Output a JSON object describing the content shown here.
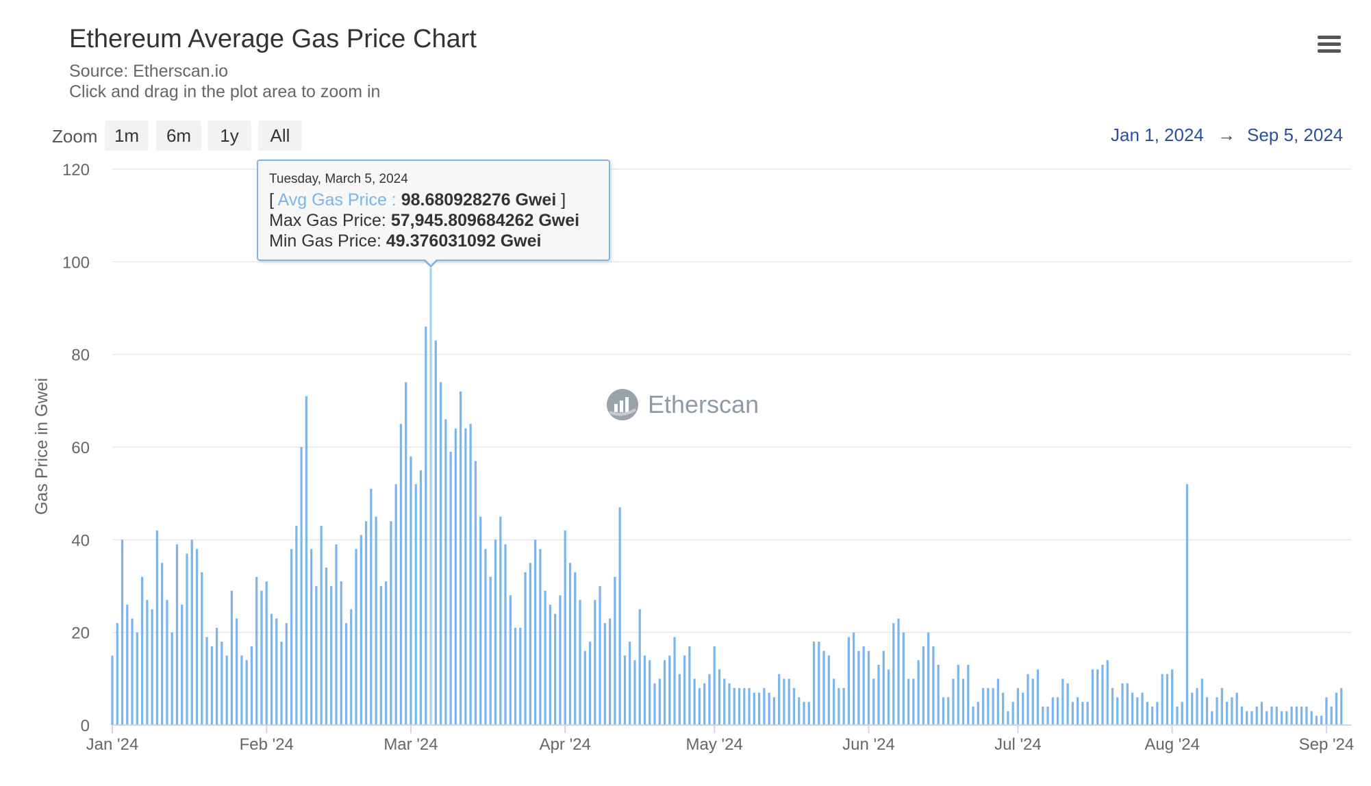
{
  "header": {
    "title": "Ethereum Average Gas Price Chart",
    "source": "Source: Etherscan.io",
    "instruction": "Click and drag in the plot area to zoom in"
  },
  "toolbar": {
    "zoom_label": "Zoom",
    "zoom_options": [
      "1m",
      "6m",
      "1y",
      "All"
    ],
    "range_from": "Jan 1, 2024",
    "range_arrow": "→",
    "range_to": "Sep 5, 2024",
    "menu_icon": "hamburger-menu-icon"
  },
  "watermark": {
    "text": "Etherscan",
    "icon": "etherscan-logo-icon"
  },
  "tooltip": {
    "date": "Tuesday, March 5, 2024",
    "avg_open": "[ ",
    "avg_label": "Avg Gas Price : ",
    "avg_value": "98.680928276 Gwei",
    "avg_close": " ]",
    "max_label": "Max Gas Price: ",
    "max_value": "57,945.809684262 Gwei",
    "min_label": "Min Gas Price: ",
    "min_value": "49.376031092 Gwei"
  },
  "colors": {
    "bar": "#7cb5ec",
    "range_text": "#2b4fa0",
    "grid": "#e6e6e6"
  },
  "chart_data": {
    "type": "bar",
    "title": "Ethereum Average Gas Price Chart",
    "subtitle": "Source: Etherscan.io",
    "ylabel": "Gas Price in Gwei",
    "xlabel": "",
    "ylim": [
      0,
      120
    ],
    "y_ticks": [
      0,
      20,
      40,
      60,
      80,
      100,
      120
    ],
    "x_start": "2024-01-01",
    "x_end": "2024-09-05",
    "x_ticks": [
      {
        "date": "2024-01-01",
        "label": "Jan '24"
      },
      {
        "date": "2024-02-01",
        "label": "Feb '24"
      },
      {
        "date": "2024-03-01",
        "label": "Mar '24"
      },
      {
        "date": "2024-04-01",
        "label": "Apr '24"
      },
      {
        "date": "2024-05-01",
        "label": "May '24"
      },
      {
        "date": "2024-06-01",
        "label": "Jun '24"
      },
      {
        "date": "2024-07-01",
        "label": "Jul '24"
      },
      {
        "date": "2024-08-01",
        "label": "Aug '24"
      },
      {
        "date": "2024-09-01",
        "label": "Sep '24"
      }
    ],
    "grid": true,
    "legend": "none",
    "highlighted_date": "2024-03-05",
    "series": [
      {
        "values": [
          15,
          22,
          40,
          26,
          23,
          20,
          32,
          27,
          25,
          42,
          35,
          27,
          20,
          39,
          26,
          37,
          40,
          38,
          33,
          19,
          17,
          21,
          18,
          15,
          29,
          23,
          15,
          14,
          17,
          32,
          29,
          31,
          24,
          23,
          18,
          22,
          38,
          43,
          60,
          71,
          38,
          30,
          43,
          34,
          30,
          39,
          31,
          22,
          25,
          38,
          41,
          44,
          51,
          45,
          30,
          31,
          44,
          52,
          65,
          74,
          58,
          52,
          55,
          86,
          98.68,
          83,
          74,
          66,
          59,
          64,
          72,
          64,
          65,
          57,
          45,
          38,
          32,
          40,
          45,
          39,
          28,
          21,
          21,
          33,
          35,
          40,
          38,
          29,
          26,
          24,
          28,
          42,
          35,
          33,
          27,
          16,
          18,
          27,
          30,
          22,
          23,
          32,
          47,
          15,
          18,
          14,
          25,
          15,
          14,
          9,
          10,
          14,
          15,
          19,
          11,
          15,
          17,
          10,
          8,
          9,
          11,
          17,
          12,
          10,
          9,
          8,
          8,
          8,
          8,
          7,
          7,
          8,
          7,
          6,
          11,
          10,
          10,
          8,
          6,
          5,
          5,
          18,
          18,
          16,
          15,
          10,
          8,
          8,
          19,
          20,
          16,
          17,
          16,
          10,
          13,
          16,
          12,
          22,
          23,
          20,
          10,
          10,
          14,
          17,
          20,
          17,
          13,
          6,
          6,
          10,
          13,
          10,
          13,
          4,
          5,
          8,
          8,
          8,
          10,
          7,
          3,
          5,
          8,
          7,
          11,
          10,
          12,
          4,
          4,
          6,
          6,
          10,
          9,
          5,
          6,
          5,
          5,
          12,
          12,
          13,
          14,
          8,
          6,
          9,
          9,
          7,
          6,
          7,
          5,
          4,
          5,
          11,
          11,
          12,
          4,
          5,
          52,
          7,
          8,
          10,
          6,
          3,
          6,
          8,
          5,
          6,
          7,
          4,
          3,
          3,
          4,
          5,
          3,
          4,
          4,
          3,
          3,
          4,
          4,
          4,
          4,
          3,
          2,
          2,
          6,
          4,
          7,
          8
        ]
      }
    ]
  }
}
